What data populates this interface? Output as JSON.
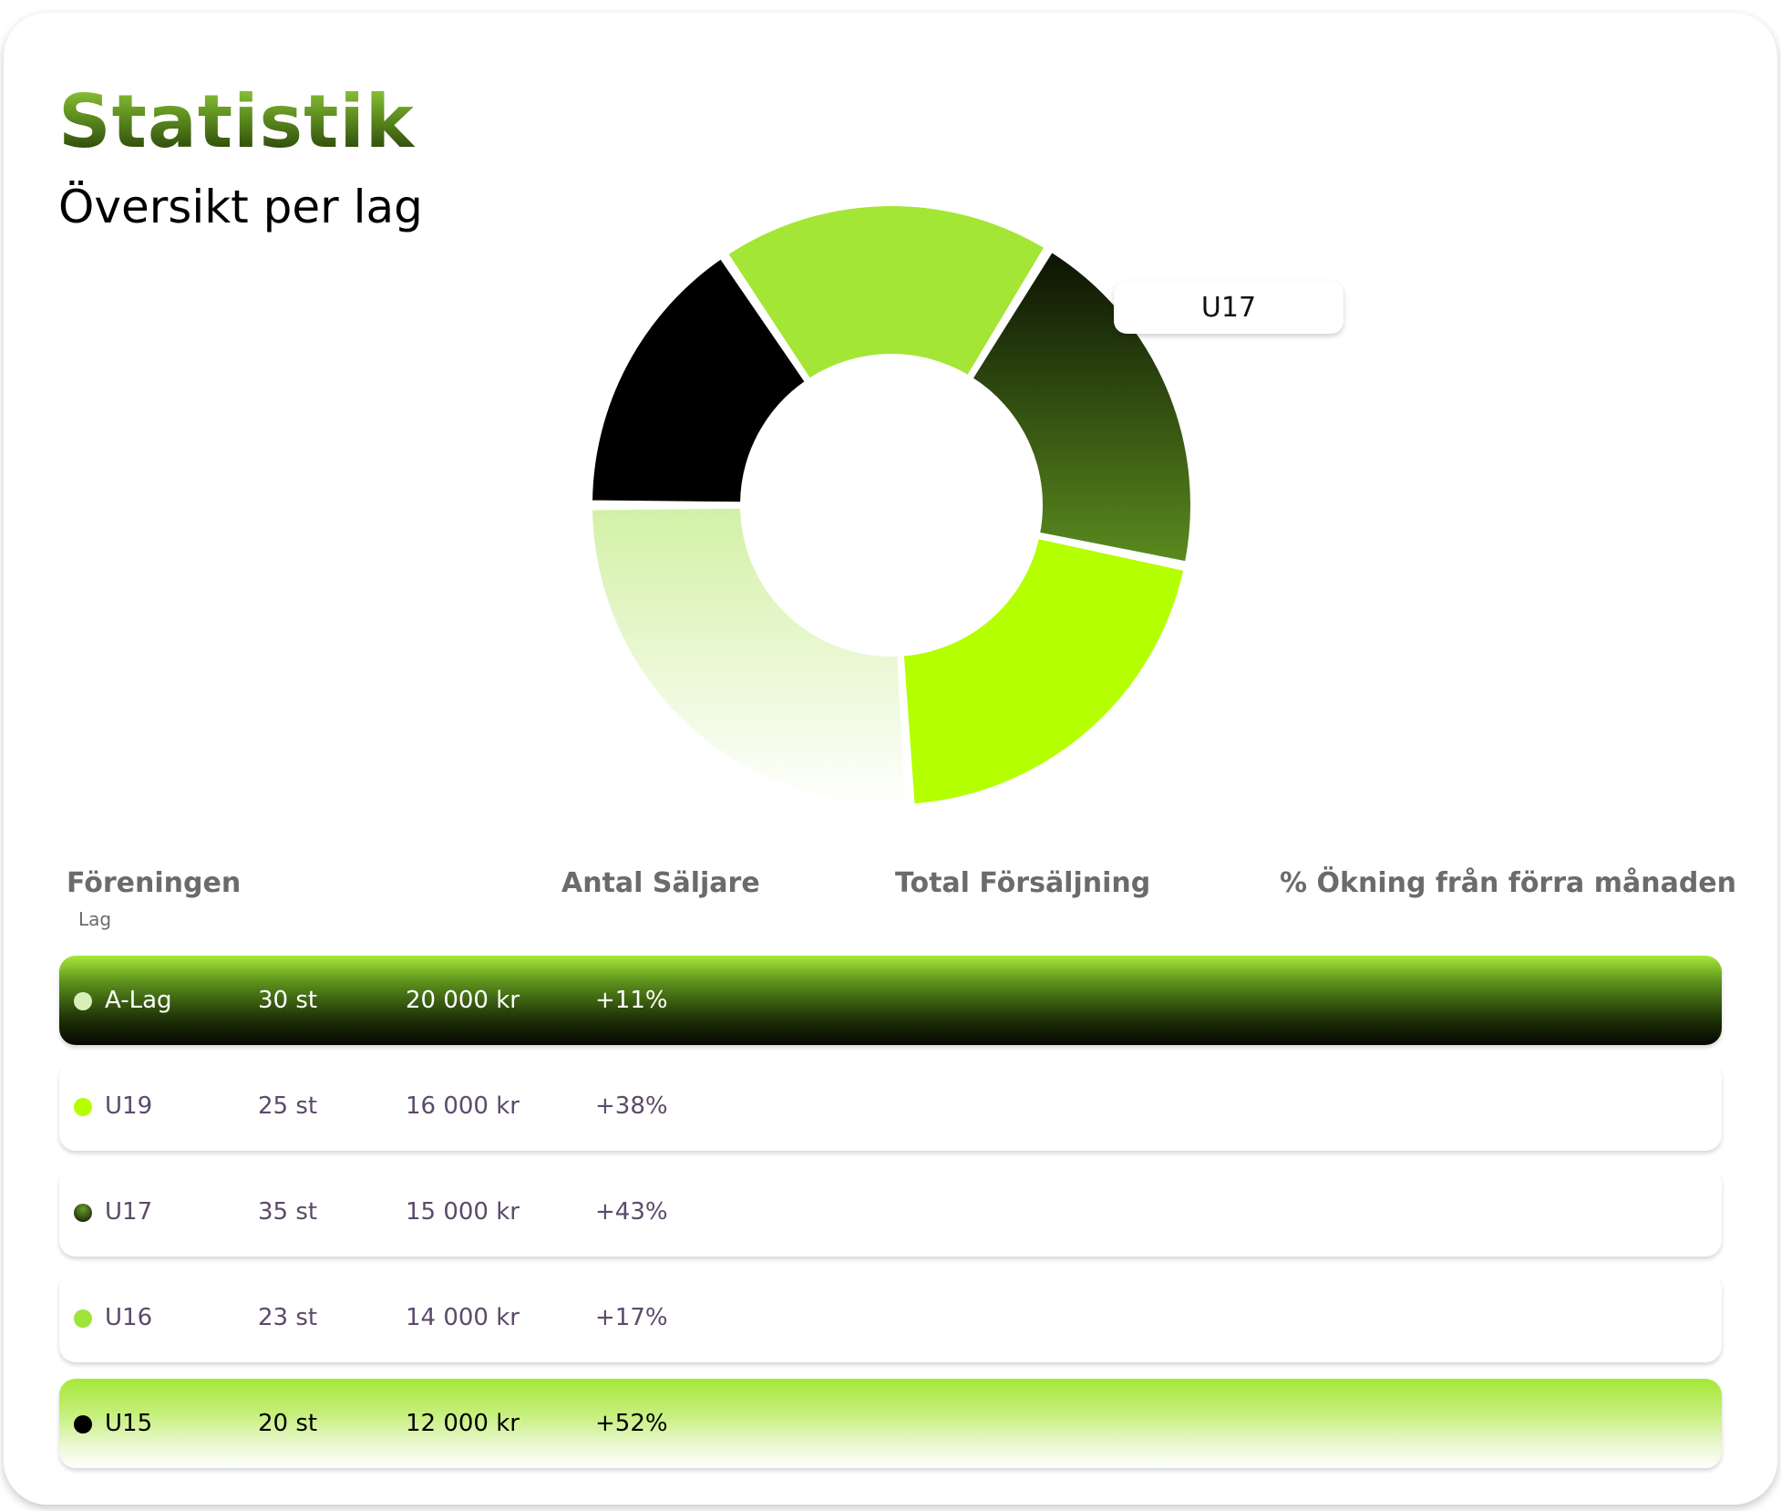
{
  "header": {
    "title": "Statistik",
    "subtitle": "Översikt per lag"
  },
  "tooltip": {
    "label": "U17"
  },
  "chart_data": {
    "type": "pie",
    "categories": [
      "A-Lag",
      "U19",
      "U17",
      "U16",
      "U15"
    ],
    "values": [
      20000,
      16000,
      15000,
      14000,
      12000
    ],
    "unit": "kr",
    "highlighted": "U17"
  },
  "colors": {
    "accent": "#a3e635",
    "lime": "#b4ff00",
    "dark": "#000000"
  },
  "table": {
    "headers": [
      "Föreningen",
      "Antal Säljare",
      "Total Försäljning",
      "% Ökning från förra månaden"
    ],
    "subheader": "Lag",
    "rows": [
      {
        "team": "A-Lag",
        "sellers": "30 st",
        "sales": "20 000 kr",
        "increase": "+11%",
        "dot_color": "#d8f0b8"
      },
      {
        "team": "U19",
        "sellers": "25 st",
        "sales": "16 000 kr",
        "increase": "+38%",
        "dot_color": "#b4ff00"
      },
      {
        "team": "U17",
        "sellers": "35 st",
        "sales": "15 000 kr",
        "increase": "+43%",
        "dot_color": "#3a5a12"
      },
      {
        "team": "U16",
        "sellers": "23 st",
        "sales": "14 000 kr",
        "increase": "+17%",
        "dot_color": "#9ee43a"
      },
      {
        "team": "U15",
        "sellers": "20 st",
        "sales": "12 000 kr",
        "increase": "+52%",
        "dot_color": "#000000"
      }
    ]
  }
}
